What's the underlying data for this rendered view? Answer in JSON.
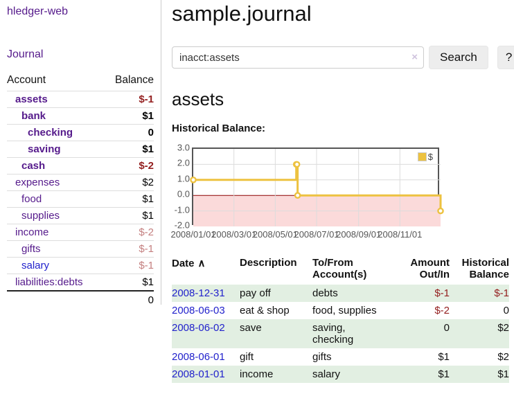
{
  "sidebar": {
    "app_title": "hledger-web",
    "nav_journal": "Journal",
    "accounts_header": {
      "account": "Account",
      "balance": "Balance"
    },
    "accounts": [
      {
        "name": "assets",
        "balance": "$-1"
      },
      {
        "name": "bank",
        "balance": "$1"
      },
      {
        "name": "checking",
        "balance": "0"
      },
      {
        "name": "saving",
        "balance": "$1"
      },
      {
        "name": "cash",
        "balance": "$-2"
      },
      {
        "name": "expenses",
        "balance": "$2"
      },
      {
        "name": "food",
        "balance": "$1"
      },
      {
        "name": "supplies",
        "balance": "$1"
      },
      {
        "name": "income",
        "balance": "$-2"
      },
      {
        "name": "gifts",
        "balance": "$-1"
      },
      {
        "name": "salary",
        "balance": "$-1"
      },
      {
        "name": "liabilities:debts",
        "balance": "$1"
      }
    ],
    "total": "0"
  },
  "main": {
    "title": "sample.journal",
    "search": {
      "value": "inacct:assets",
      "clear_icon": "×",
      "button_label": "Search",
      "help_label": "?"
    },
    "account_heading": "assets",
    "chart_label": "Historical Balance:",
    "chart_data": {
      "type": "line",
      "step": true,
      "title": "Historical Balance",
      "line_color": "#edc240",
      "marker_fill": "#ffffff",
      "negative_fill": "#fbdada",
      "zero_line_color": "#8b0000",
      "grid_color": "#dcdcdc",
      "ylim": [
        -2,
        3
      ],
      "x_range_days": [
        0,
        365
      ],
      "legend": [
        {
          "label": "$",
          "color": "#edc240"
        }
      ],
      "y_ticks": [
        {
          "label": "3.0",
          "value": 3
        },
        {
          "label": "2.0",
          "value": 2
        },
        {
          "label": "1.0",
          "value": 1
        },
        {
          "label": "0.0",
          "value": 0
        },
        {
          "label": "-1.0",
          "value": -1
        },
        {
          "label": "-2.0",
          "value": -2
        }
      ],
      "x_ticks": [
        {
          "label": "2008/01/01",
          "day": 0
        },
        {
          "label": "2008/03/01",
          "day": 60
        },
        {
          "label": "2008/05/01",
          "day": 121
        },
        {
          "label": "2008/07/01",
          "day": 182
        },
        {
          "label": "2008/09/01",
          "day": 244
        },
        {
          "label": "2008/11/01",
          "day": 305
        }
      ],
      "series": [
        {
          "name": "$",
          "points": [
            {
              "date": "2008-01-01",
              "day": 0,
              "value": 1
            },
            {
              "date": "2008-06-01",
              "day": 152,
              "value": 2
            },
            {
              "date": "2008-06-02",
              "day": 153,
              "value": 2
            },
            {
              "date": "2008-06-03",
              "day": 154,
              "value": 0
            },
            {
              "date": "2008-12-31",
              "day": 365,
              "value": -1
            }
          ]
        }
      ]
    },
    "table": {
      "sort_indicator": "∧",
      "headers": {
        "date": "Date",
        "description": "Description",
        "accounts": "To/From Account(s)",
        "amount": "Amount Out/In",
        "balance": "Historical Balance"
      },
      "rows": [
        {
          "date": "2008-12-31",
          "description": "pay off",
          "accounts": "debts",
          "amount": "$-1",
          "balance": "$-1"
        },
        {
          "date": "2008-06-03",
          "description": "eat & shop",
          "accounts": "food, supplies",
          "amount": "$-2",
          "balance": "0"
        },
        {
          "date": "2008-06-02",
          "description": "save",
          "accounts": "saving, checking",
          "amount": "0",
          "balance": "$2"
        },
        {
          "date": "2008-06-01",
          "description": "gift",
          "accounts": "gifts",
          "amount": "$1",
          "balance": "$2"
        },
        {
          "date": "2008-01-01",
          "description": "income",
          "accounts": "salary",
          "amount": "$1",
          "balance": "$1"
        }
      ]
    }
  }
}
